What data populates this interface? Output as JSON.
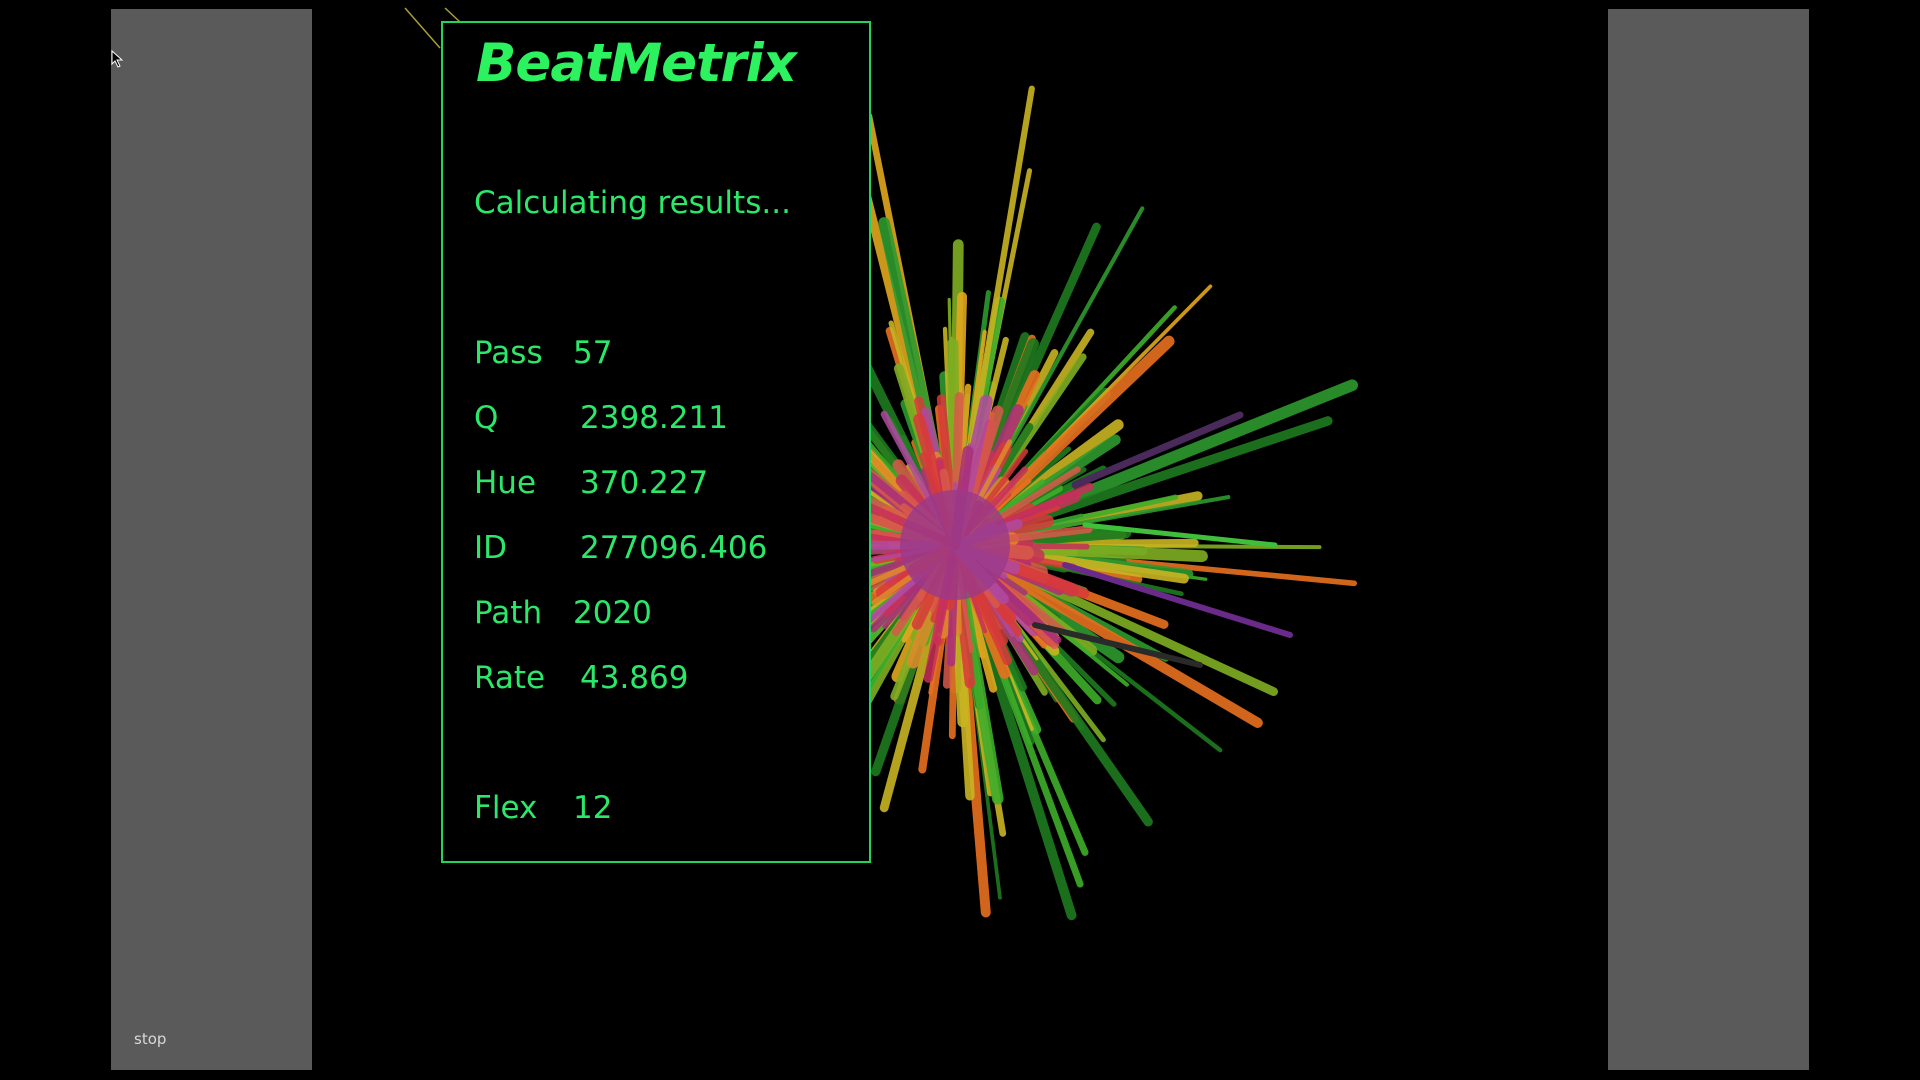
{
  "app": {
    "title": "BeatMetrix",
    "status": "Calculating results..."
  },
  "controls": {
    "stop_label": "stop"
  },
  "metrics": [
    {
      "label": "Pass",
      "value": "57"
    },
    {
      "label": "Q",
      "value": "2398.211"
    },
    {
      "label": "Hue",
      "value": "370.227"
    },
    {
      "label": "ID",
      "value": "277096.406"
    },
    {
      "label": "Path",
      "value": "2020"
    },
    {
      "label": "Rate",
      "value": "43.869"
    },
    {
      "label": "Flex",
      "value": "12"
    }
  ],
  "colors": {
    "background": "#000000",
    "panel": "#5a5a5a",
    "accent": "#2be86a",
    "border": "#1fd65a"
  }
}
